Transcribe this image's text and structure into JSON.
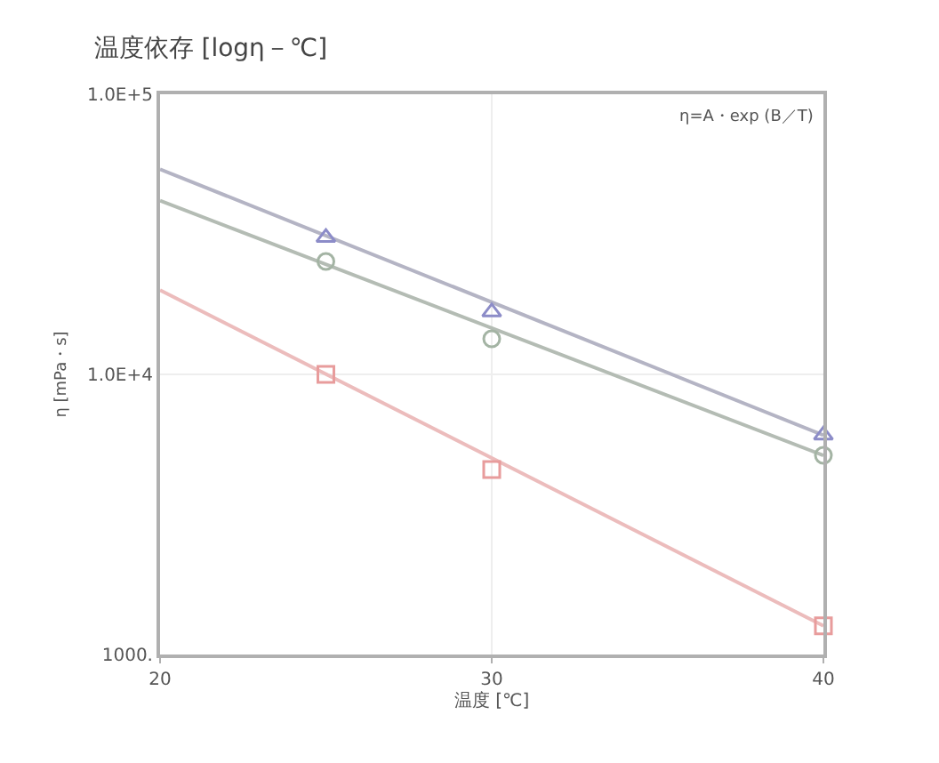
{
  "chart_data": {
    "type": "scatter",
    "title": "温度依存 [logη－℃]",
    "xlabel": "温度 [℃]",
    "ylabel": "η [mPa・s]",
    "annotations": [
      "η=A・exp (B／T)"
    ],
    "log": "y",
    "xlim": [
      20,
      40
    ],
    "xticks": [
      20,
      30,
      40
    ],
    "ylim": [
      1000,
      100000
    ],
    "yticks": [
      {
        "value": 1000,
        "label": "1000."
      },
      {
        "value": 10000,
        "label": "1.0E+4"
      },
      {
        "value": 100000,
        "label": "1.0E+5"
      }
    ],
    "grid": true,
    "series": [
      {
        "type": "line",
        "color": "#b4b4c4",
        "x": [
          20,
          40
        ],
        "values": [
          54000,
          6070
        ],
        "marker": "none"
      },
      {
        "type": "line",
        "color": "#b4bcb4",
        "x": [
          20,
          40
        ],
        "values": [
          41700,
          5140
        ],
        "marker": "none"
      },
      {
        "type": "line",
        "color": "#ecbcbc",
        "x": [
          20,
          40
        ],
        "values": [
          20000,
          1265
        ],
        "marker": "none"
      },
      {
        "color": "#8c8cc8",
        "x": [
          25,
          30,
          40
        ],
        "values": [
          30800,
          16700,
          6070
        ],
        "marker": "triangle"
      },
      {
        "color": "#a4b4a4",
        "x": [
          25,
          30,
          40
        ],
        "values": [
          25300,
          13400,
          5140
        ],
        "marker": "circle"
      },
      {
        "color": "#e89c9c",
        "x": [
          25,
          30,
          40
        ],
        "values": [
          10000,
          4570,
          1265
        ],
        "marker": "square"
      }
    ]
  }
}
